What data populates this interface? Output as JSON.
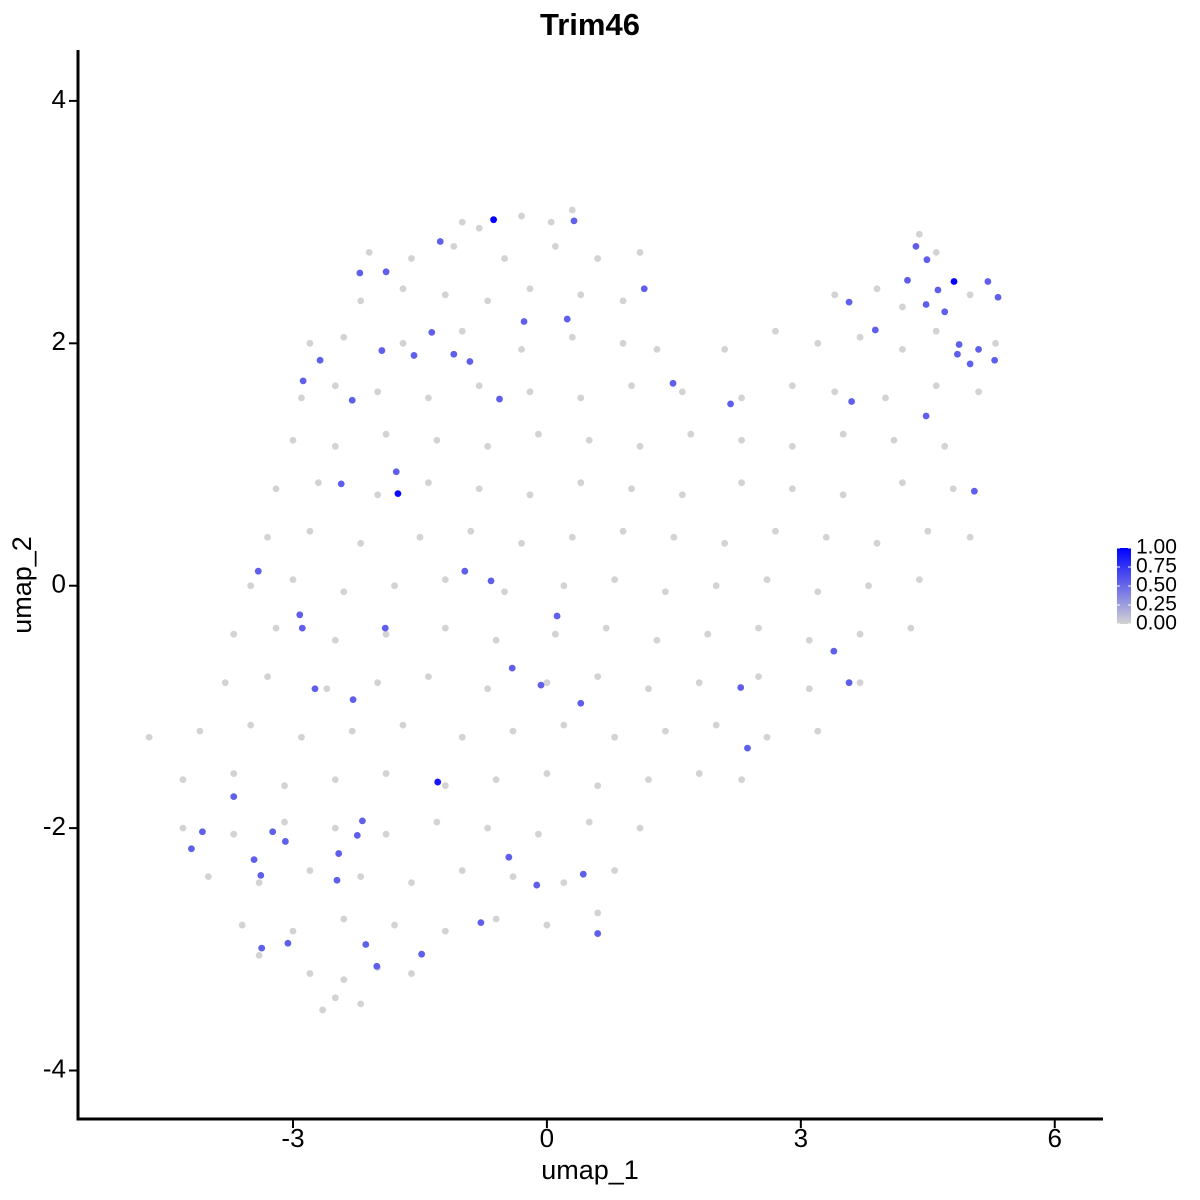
{
  "chart_data": {
    "type": "scatter",
    "title": "Trim46",
    "x_label": "umap_1",
    "y_label": "umap_2",
    "xlim": [
      -5.54,
      6.57
    ],
    "ylim": [
      -4.4,
      4.42
    ],
    "xticks": [
      -3,
      0,
      3,
      6
    ],
    "yticks": [
      -4,
      -2,
      0,
      2,
      4
    ],
    "colors": [
      "#d3d3d3",
      "#0000ff"
    ],
    "color_lim": [
      0,
      1
    ],
    "color_ticks": [
      {
        "value": 0,
        "label": "0.00"
      },
      {
        "value": 0.25,
        "label": "0.25"
      },
      {
        "value": 0.5,
        "label": "0.50"
      },
      {
        "value": 0.75,
        "label": "0.75"
      },
      {
        "value": 1,
        "label": "1.00"
      }
    ],
    "legend": "right",
    "x": [
      -1.0,
      -0.3,
      0.05,
      -0.8,
      0.3,
      -2.1,
      -1.6,
      -1.1,
      -0.5,
      0.1,
      0.6,
      1.1,
      4.4,
      4.6,
      -2.2,
      -1.7,
      -1.2,
      -0.7,
      -0.2,
      0.4,
      0.9,
      3.4,
      3.9,
      4.2,
      5.0,
      -2.8,
      -2.4,
      -1.7,
      -1.0,
      -0.3,
      0.3,
      0.9,
      1.3,
      2.1,
      2.7,
      3.2,
      3.7,
      4.2,
      4.6,
      5.3,
      -2.9,
      -2.5,
      -2.0,
      -1.4,
      -0.8,
      -0.2,
      0.4,
      1.0,
      1.6,
      2.3,
      2.9,
      3.4,
      4.0,
      4.6,
      5.1,
      -3.0,
      -2.5,
      -1.9,
      -1.3,
      -0.7,
      -0.1,
      0.5,
      1.1,
      1.7,
      2.3,
      2.9,
      3.5,
      4.1,
      4.7,
      -3.2,
      -2.7,
      -2.0,
      -1.4,
      -0.8,
      -0.2,
      0.4,
      1.0,
      1.6,
      2.3,
      2.9,
      3.5,
      4.2,
      4.8,
      -3.3,
      -2.8,
      -2.2,
      -1.5,
      -0.9,
      -0.3,
      0.3,
      0.9,
      1.5,
      2.1,
      2.7,
      3.3,
      3.9,
      4.5,
      5.0,
      -3.5,
      -3.0,
      -2.4,
      -1.8,
      -1.2,
      -0.5,
      0.2,
      0.8,
      1.4,
      2.0,
      2.6,
      3.2,
      3.8,
      4.4,
      -3.7,
      -3.2,
      -2.5,
      -1.9,
      -1.2,
      -0.6,
      0.1,
      0.7,
      1.3,
      1.9,
      2.5,
      3.1,
      3.7,
      4.3,
      -3.8,
      -3.3,
      -2.6,
      -2.0,
      -1.4,
      -0.7,
      0.0,
      0.6,
      1.2,
      1.8,
      2.5,
      3.1,
      3.7,
      -4.7,
      -4.1,
      -3.5,
      -2.9,
      -2.3,
      -1.7,
      -1.0,
      -0.4,
      0.2,
      0.8,
      1.4,
      2.0,
      2.6,
      3.2,
      -4.3,
      -3.7,
      -3.1,
      -2.5,
      -1.9,
      -1.2,
      -0.6,
      0.0,
      0.6,
      1.2,
      1.8,
      2.3,
      -4.3,
      -3.7,
      -3.1,
      -2.5,
      -1.9,
      -1.3,
      -0.7,
      -0.1,
      0.5,
      1.1,
      -4.0,
      -3.4,
      -2.8,
      -2.2,
      -1.6,
      -1.0,
      -0.4,
      0.2,
      0.8,
      -3.6,
      -3.0,
      -2.4,
      -1.8,
      -1.2,
      -0.6,
      0.0,
      0.6,
      -2.8,
      -2.4,
      -2.0,
      -1.6,
      -3.4,
      -2.5,
      -2.2,
      -2.65,
      -0.63,
      0.32,
      -1.26,
      -2.21,
      -1.9,
      1.15,
      -0.27,
      0.24,
      -1.36,
      -1.95,
      -2.68,
      -1.1,
      -1.57,
      -0.91,
      -2.88,
      1.49,
      -0.56,
      -2.3,
      2.17,
      -1.78,
      -1.76,
      -2.43,
      -3.41,
      -0.97,
      -0.66,
      -2.92,
      -2.89,
      -1.91,
      0.12,
      -0.41,
      -0.07,
      -2.74,
      -2.29,
      0.4,
      2.29,
      -1.29,
      -3.7,
      2.37,
      3.39,
      3.57,
      -2.18,
      -2.24,
      -4.07,
      -4.2,
      -3.24,
      -3.09,
      -2.46,
      -3.46,
      -3.38,
      -2.48,
      -0.45,
      0.43,
      -0.12,
      -0.78,
      0.6,
      -3.06,
      -2.14,
      -3.37,
      -1.48,
      -2.01,
      3.57,
      3.88,
      3.6,
      4.36,
      4.49,
      4.26,
      4.81,
      4.62,
      4.48,
      4.7,
      5.21,
      5.33,
      4.87,
      4.85,
      5.1,
      5.0,
      5.29,
      4.48,
      5.05
    ],
    "y": [
      3.0,
      3.05,
      3.0,
      2.95,
      3.1,
      2.75,
      2.7,
      2.8,
      2.7,
      2.8,
      2.7,
      2.75,
      2.9,
      2.75,
      2.35,
      2.45,
      2.4,
      2.35,
      2.45,
      2.4,
      2.35,
      2.4,
      2.45,
      2.3,
      2.4,
      2.0,
      2.05,
      2.0,
      2.1,
      1.95,
      2.05,
      2.0,
      1.95,
      1.95,
      2.1,
      2.0,
      2.05,
      1.95,
      2.1,
      2.0,
      1.55,
      1.65,
      1.6,
      1.55,
      1.65,
      1.6,
      1.55,
      1.65,
      1.6,
      1.55,
      1.65,
      1.6,
      1.55,
      1.65,
      1.6,
      1.2,
      1.15,
      1.25,
      1.2,
      1.15,
      1.25,
      1.2,
      1.15,
      1.25,
      1.2,
      1.15,
      1.25,
      1.2,
      1.15,
      0.8,
      0.85,
      0.75,
      0.85,
      0.8,
      0.75,
      0.85,
      0.8,
      0.75,
      0.85,
      0.8,
      0.75,
      0.85,
      0.8,
      0.4,
      0.45,
      0.35,
      0.4,
      0.45,
      0.35,
      0.4,
      0.45,
      0.4,
      0.35,
      0.45,
      0.4,
      0.35,
      0.45,
      0.4,
      0.0,
      0.05,
      -0.05,
      0.0,
      0.05,
      -0.05,
      0.0,
      0.05,
      -0.05,
      0.0,
      0.05,
      -0.05,
      0.0,
      0.05,
      -0.4,
      -0.35,
      -0.45,
      -0.4,
      -0.35,
      -0.45,
      -0.4,
      -0.35,
      -0.45,
      -0.4,
      -0.35,
      -0.45,
      -0.4,
      -0.35,
      -0.8,
      -0.75,
      -0.85,
      -0.8,
      -0.75,
      -0.85,
      -0.8,
      -0.75,
      -0.85,
      -0.8,
      -0.75,
      -0.85,
      -0.8,
      -1.25,
      -1.2,
      -1.15,
      -1.25,
      -1.2,
      -1.15,
      -1.25,
      -1.2,
      -1.15,
      -1.25,
      -1.2,
      -1.15,
      -1.25,
      -1.2,
      -1.6,
      -1.55,
      -1.65,
      -1.6,
      -1.55,
      -1.65,
      -1.6,
      -1.55,
      -1.65,
      -1.6,
      -1.55,
      -1.6,
      -2.0,
      -2.05,
      -1.95,
      -2.0,
      -2.05,
      -1.95,
      -2.0,
      -2.05,
      -1.95,
      -2.0,
      -2.4,
      -2.45,
      -2.35,
      -2.4,
      -2.45,
      -2.35,
      -2.4,
      -2.45,
      -2.35,
      -2.8,
      -2.85,
      -2.75,
      -2.8,
      -2.85,
      -2.75,
      -2.8,
      -2.7,
      -3.2,
      -3.25,
      -3.15,
      -3.2,
      -3.05,
      -3.4,
      -3.45,
      -3.5,
      3.02,
      3.01,
      2.84,
      2.58,
      2.59,
      2.45,
      2.18,
      2.2,
      2.09,
      1.94,
      1.86,
      1.91,
      1.9,
      1.85,
      1.69,
      1.67,
      1.54,
      1.53,
      1.5,
      0.94,
      0.76,
      0.84,
      0.12,
      0.12,
      0.04,
      -0.24,
      -0.35,
      -0.35,
      -0.25,
      -0.68,
      -0.82,
      -0.85,
      -0.94,
      -0.97,
      -0.84,
      -1.62,
      -1.74,
      -1.34,
      -0.54,
      -0.8,
      -1.94,
      -2.06,
      -2.03,
      -2.17,
      -2.03,
      -2.11,
      -2.21,
      -2.26,
      -2.39,
      -2.43,
      -2.24,
      -2.38,
      -2.47,
      -2.78,
      -2.87,
      -2.95,
      -2.96,
      -2.99,
      -3.04,
      -3.14,
      2.34,
      2.11,
      1.52,
      2.8,
      2.69,
      2.52,
      2.51,
      2.44,
      2.32,
      2.26,
      2.51,
      2.38,
      1.99,
      1.91,
      1.95,
      1.83,
      1.86,
      1.4,
      0.78
    ],
    "values": [
      0,
      0,
      0,
      0,
      0,
      0,
      0,
      0,
      0,
      0,
      0,
      0,
      0,
      0,
      0,
      0,
      0,
      0,
      0,
      0,
      0,
      0,
      0,
      0,
      0,
      0,
      0,
      0,
      0,
      0,
      0,
      0,
      0,
      0,
      0,
      0,
      0,
      0,
      0,
      0,
      0,
      0,
      0,
      0,
      0,
      0,
      0,
      0,
      0,
      0,
      0,
      0,
      0,
      0,
      0,
      0,
      0,
      0,
      0,
      0,
      0,
      0,
      0,
      0,
      0,
      0,
      0,
      0,
      0,
      0,
      0,
      0,
      0,
      0,
      0,
      0,
      0,
      0,
      0,
      0,
      0,
      0,
      0,
      0,
      0,
      0,
      0,
      0,
      0,
      0,
      0,
      0,
      0,
      0,
      0,
      0,
      0,
      0,
      0,
      0,
      0,
      0,
      0,
      0,
      0,
      0,
      0,
      0,
      0,
      0,
      0,
      0,
      0,
      0,
      0,
      0,
      0,
      0,
      0,
      0,
      0,
      0,
      0,
      0,
      0,
      0,
      0,
      0,
      0,
      0,
      0,
      0,
      0,
      0,
      0,
      0,
      0,
      0,
      0,
      0,
      0,
      0,
      0,
      0,
      0,
      0,
      0,
      0,
      0,
      0,
      0,
      0,
      0,
      0,
      0,
      0,
      0,
      0,
      0,
      0,
      0,
      0,
      0,
      0,
      0,
      0,
      0,
      0,
      0,
      0,
      0,
      0,
      0,
      0,
      0,
      0,
      0,
      0,
      0,
      0,
      0,
      0,
      0,
      0,
      0,
      0,
      0,
      0,
      0,
      0,
      0,
      0,
      0,
      0,
      0,
      0,
      0,
      0,
      0,
      0,
      1.0,
      0.55,
      0.55,
      0.55,
      0.55,
      0.55,
      0.55,
      0.55,
      0.55,
      0.55,
      0.55,
      0.55,
      0.55,
      0.55,
      0.55,
      0.55,
      0.55,
      0.55,
      0.55,
      0.55,
      0.95,
      0.55,
      0.55,
      0.55,
      0.55,
      0.55,
      0.55,
      0.55,
      0.55,
      0.55,
      0.55,
      0.55,
      0.55,
      0.55,
      0.55,
      0.9,
      0.55,
      0.55,
      0.55,
      0.55,
      0.55,
      0.55,
      0.55,
      0.55,
      0.55,
      0.55,
      0.55,
      0.55,
      0.55,
      0.55,
      0.55,
      0.55,
      0.55,
      0.55,
      0.55,
      0.55,
      0.55,
      0.55,
      0.55,
      0.55,
      0.55,
      0.55,
      0.55,
      0.55,
      0.55,
      0.55,
      1.0,
      0.55,
      0.55,
      0.55,
      0.55,
      0.55,
      0.55,
      0.55,
      0.55,
      0.55,
      0.55,
      0.55,
      0.55
    ]
  }
}
